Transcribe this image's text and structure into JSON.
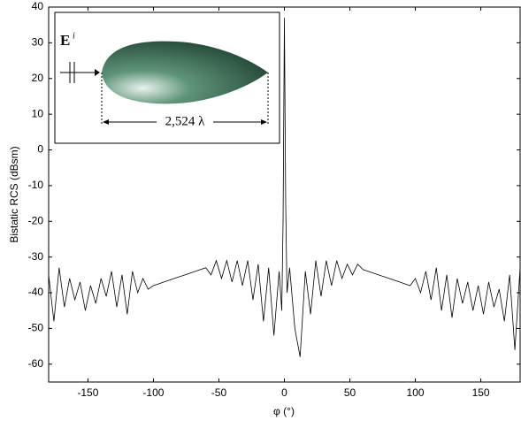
{
  "chart_data": {
    "type": "line",
    "xlabel": "φ (°)",
    "ylabel": "Bistatic RCS (dBsm)",
    "annotations": [
      "E",
      "i",
      "2,524 λ"
    ],
    "x": [
      -180,
      -176,
      -172,
      -168,
      -164,
      -160,
      -156,
      -152,
      -148,
      -144,
      -140,
      -136,
      -132,
      -128,
      -124,
      -120,
      -116,
      -112,
      -108,
      -104,
      -100,
      -96,
      -92,
      -88,
      -84,
      -80,
      -76,
      -72,
      -68,
      -64,
      -60,
      -56,
      -52,
      -48,
      -44,
      -40,
      -36,
      -32,
      -28,
      -24,
      -20,
      -16,
      -12,
      -8,
      -4,
      -2,
      -1,
      0,
      1,
      2,
      4,
      8,
      12,
      16,
      20,
      24,
      28,
      32,
      36,
      40,
      44,
      48,
      52,
      56,
      60,
      64,
      68,
      72,
      76,
      80,
      84,
      88,
      92,
      96,
      100,
      104,
      108,
      112,
      116,
      120,
      124,
      128,
      132,
      136,
      140,
      144,
      148,
      152,
      156,
      160,
      164,
      168,
      172,
      176,
      180
    ],
    "values": [
      -35,
      -48,
      -33,
      -44,
      -36,
      -42,
      -37,
      -45,
      -38,
      -43,
      -36,
      -41,
      -34,
      -44,
      -35,
      -46,
      -34,
      -40,
      -36,
      -39,
      -38,
      -37.5,
      -37,
      -36.5,
      -36,
      -35.5,
      -35,
      -34.5,
      -34,
      -33.5,
      -33,
      -35,
      -31,
      -36,
      -31,
      -37,
      -31,
      -38,
      -31,
      -42,
      -32,
      -48,
      -33,
      -52,
      -34,
      -45,
      -20,
      37,
      -15,
      -40,
      -33,
      -50,
      -58,
      -34,
      -46,
      -31,
      -41,
      -31,
      -38,
      -31,
      -36,
      -32,
      -35,
      -32,
      -33.5,
      -34,
      -34.5,
      -35,
      -35.5,
      -36,
      -36.5,
      -37,
      -37.5,
      -38,
      -36,
      -40,
      -34,
      -42,
      -33,
      -45,
      -35,
      -47,
      -36,
      -43,
      -37,
      -45,
      -38,
      -46,
      -37,
      -44,
      -39,
      -48,
      -35,
      -56,
      -33
    ],
    "color": "#000000",
    "xlim": [
      -180,
      180
    ],
    "xticks": [
      -150,
      -100,
      -50,
      0,
      50,
      100,
      150
    ],
    "ylim": [
      -65,
      40
    ],
    "yticks": [
      -60,
      -50,
      -40,
      -30,
      -20,
      -10,
      0,
      10,
      20,
      30,
      40
    ],
    "grid": false
  }
}
